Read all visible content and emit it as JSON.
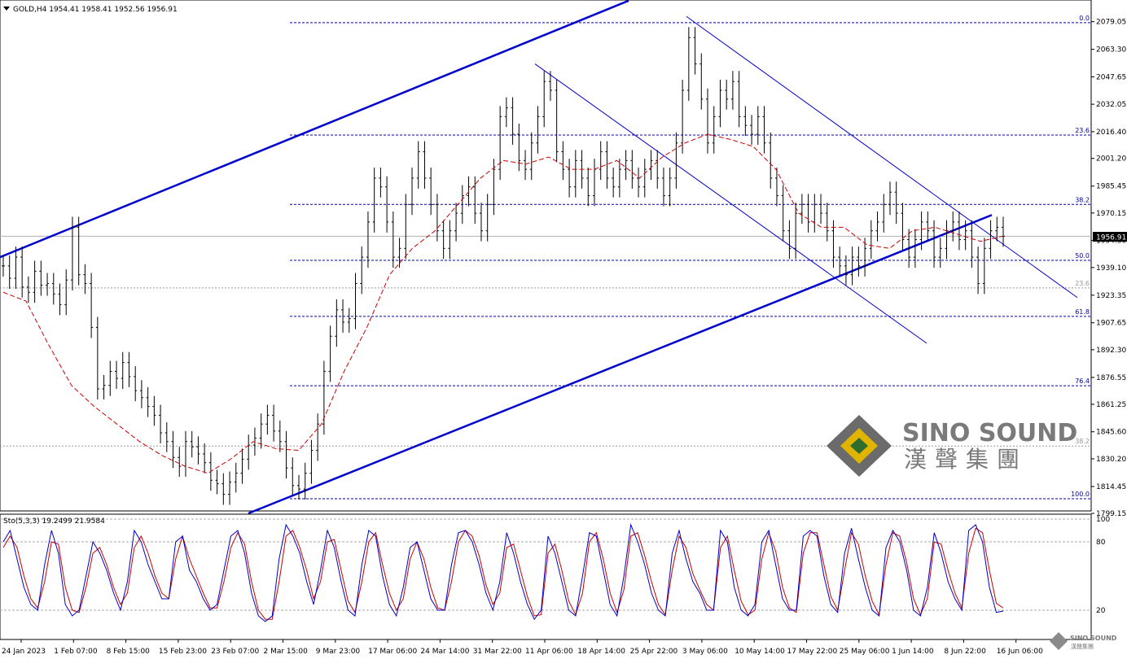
{
  "header": {
    "symbol_text": "GOLD,H4  1954.41 1958.41 1952.56 1956.91"
  },
  "indicator": {
    "label_text": "Sto(5,3,3) 19.2499 21.9584",
    "levels": [
      "100",
      "80",
      "20"
    ]
  },
  "watermark": {
    "brand_en": "SINO SOUND",
    "brand_cn": "漢聲集團",
    "small_en": "SINO SOUND",
    "small_cn": "漢聲集團"
  },
  "colors": {
    "price_bars": "#000000",
    "ma_line": "#cc0000",
    "channel": "#0000cc",
    "fib_line": "#0000aa",
    "stoch_main": "#0000cc",
    "stoch_signal": "#cc0000",
    "price_label_bg": "#000000"
  },
  "chart_data": {
    "type": "line",
    "symbol": "GOLD",
    "timeframe": "H4",
    "ohlc_current": {
      "open": 1954.41,
      "high": 1958.41,
      "low": 1952.56,
      "close": 1956.91
    },
    "current_price_label": "1956.91",
    "y_ticks": [
      "2079.05",
      "2063.30",
      "2047.65",
      "2032.05",
      "2016.40",
      "2001.20",
      "1985.45",
      "1970.15",
      "1954.50",
      "1939.10",
      "1923.35",
      "1907.65",
      "1892.30",
      "1876.55",
      "1861.25",
      "1845.60",
      "1830.20",
      "1814.45",
      "1799.15"
    ],
    "ylim": [
      1799.15,
      2090
    ],
    "x_ticks": [
      "24 Jan 2023",
      "1 Feb 07:00",
      "8 Feb 15:00",
      "15 Feb 23:00",
      "23 Feb 07:00",
      "2 Mar 15:00",
      "9 Mar 23:00",
      "17 Mar 06:00",
      "24 Mar 14:00",
      "31 Mar 22:00",
      "11 Apr 06:00",
      "18 Apr 14:00",
      "25 Apr 22:00",
      "3 May 06:00",
      "10 May 14:00",
      "17 May 22:00",
      "25 May 06:00",
      "1 Jun 14:00",
      "8 Jun 22:00",
      "16 Jun 06:00"
    ],
    "fib_levels": [
      {
        "label": "0.0",
        "price": 2078.5,
        "style": "dashed-blue"
      },
      {
        "label": "23.6",
        "price": 2014.5,
        "style": "dashed-blue"
      },
      {
        "label": "38.2",
        "price": 1975.0,
        "style": "dashed-blue"
      },
      {
        "label": "50.0",
        "price": 1943.2,
        "style": "dashed-blue"
      },
      {
        "label": "23.6",
        "price": 1927.5,
        "style": "dotted-grey"
      },
      {
        "label": "61.8",
        "price": 1911.3,
        "style": "dashed-blue"
      },
      {
        "label": "76.4",
        "price": 1871.8,
        "style": "dashed-blue"
      },
      {
        "label": "38.2",
        "price": 1837.5,
        "style": "dotted-grey"
      },
      {
        "label": "100.0",
        "price": 1807.5,
        "style": "dashed-blue"
      }
    ],
    "series": [
      {
        "kind": "close",
        "values": [
          1940,
          1933,
          1945,
          1928,
          1925,
          1937,
          1929,
          1930,
          1924,
          1918,
          1932,
          1962,
          1935,
          1930,
          1905,
          1870,
          1872,
          1880,
          1876,
          1885,
          1877,
          1869,
          1865,
          1860,
          1855,
          1845,
          1840,
          1831,
          1826,
          1840,
          1837,
          1833,
          1828,
          1818,
          1816,
          1810,
          1817,
          1822,
          1830,
          1838,
          1842,
          1850,
          1855,
          1846,
          1840,
          1825,
          1815,
          1813,
          1822,
          1835,
          1850,
          1880,
          1900,
          1915,
          1908,
          1910,
          1930,
          1945,
          1965,
          1990,
          1985,
          1965,
          1945,
          1950,
          1975,
          1990,
          2005,
          1990,
          1975,
          1960,
          1950,
          1960,
          1970,
          1980,
          1985,
          1970,
          1960,
          1975,
          1995,
          2025,
          2030,
          2015,
          2000,
          1995,
          2010,
          2025,
          2045,
          2040,
          2005,
          1995,
          1985,
          2000,
          1990,
          1980,
          1995,
          2005,
          1990,
          1985,
          1995,
          2000,
          1990,
          1985,
          1995,
          2000,
          1990,
          1980,
          1990,
          2010,
          2040,
          2070,
          2055,
          2035,
          2010,
          2025,
          2040,
          2035,
          2045,
          2025,
          2020,
          2015,
          2025,
          2010,
          1990,
          1980,
          1960,
          1950,
          1970,
          1975,
          1965,
          1975,
          1970,
          1960,
          1945,
          1940,
          1935,
          1945,
          1940,
          1950,
          1960,
          1965,
          1975,
          1982,
          1970,
          1955,
          1945,
          1955,
          1965,
          1960,
          1945,
          1950,
          1960,
          1965,
          1955,
          1960,
          1945,
          1930,
          1950,
          1960,
          1962,
          1956.91
        ]
      },
      {
        "kind": "moving-average",
        "values": [
          1925,
          1920,
          1895,
          1872,
          1860,
          1850,
          1840,
          1832,
          1826,
          1822,
          1830,
          1840,
          1836,
          1835,
          1850,
          1880,
          1905,
          1935,
          1950,
          1960,
          1975,
          1990,
          2000,
          1998,
          2002,
          1995,
          1995,
          2000,
          1990,
          2002,
          2010,
          2015,
          2012,
          2008,
          1995,
          1970,
          1962,
          1962,
          1952,
          1950,
          1960,
          1962,
          1958,
          1954,
          1957
        ]
      },
      {
        "kind": "stochastic-main",
        "values": [
          80,
          90,
          65,
          40,
          25,
          20,
          60,
          90,
          70,
          25,
          15,
          20,
          50,
          80,
          70,
          55,
          35,
          20,
          45,
          90,
          80,
          60,
          45,
          30,
          30,
          80,
          85,
          55,
          45,
          30,
          20,
          25,
          55,
          85,
          90,
          70,
          35,
          15,
          10,
          15,
          65,
          95,
          85,
          70,
          45,
          25,
          55,
          90,
          75,
          45,
          20,
          15,
          60,
          90,
          85,
          50,
          25,
          15,
          40,
          75,
          80,
          55,
          30,
          20,
          20,
          60,
          88,
          90,
          80,
          60,
          35,
          20,
          45,
          88,
          70,
          45,
          25,
          12,
          20,
          85,
          70,
          45,
          20,
          15,
          50,
          88,
          85,
          55,
          25,
          15,
          50,
          95,
          80,
          60,
          35,
          20,
          15,
          70,
          90,
          65,
          45,
          35,
          20,
          20,
          90,
          80,
          40,
          20,
          15,
          25,
          80,
          90,
          60,
          30,
          20,
          20,
          85,
          90,
          85,
          50,
          25,
          18,
          70,
          92,
          65,
          40,
          20,
          15,
          75,
          90,
          80,
          55,
          20,
          15,
          40,
          88,
          70,
          45,
          30,
          20,
          90,
          95,
          80,
          40,
          18,
          19.25
        ]
      },
      {
        "kind": "stochastic-signal",
        "values": [
          75,
          85,
          75,
          50,
          30,
          22,
          45,
          80,
          78,
          40,
          20,
          18,
          40,
          70,
          75,
          60,
          40,
          25,
          35,
          75,
          85,
          70,
          50,
          35,
          30,
          65,
          85,
          65,
          50,
          35,
          22,
          22,
          45,
          75,
          88,
          78,
          45,
          20,
          12,
          12,
          45,
          85,
          90,
          75,
          55,
          30,
          45,
          80,
          82,
          55,
          28,
          18,
          45,
          80,
          88,
          60,
          35,
          20,
          30,
          65,
          80,
          65,
          40,
          22,
          20,
          45,
          80,
          90,
          85,
          68,
          42,
          25,
          35,
          75,
          78,
          55,
          32,
          15,
          16,
          70,
          78,
          55,
          28,
          16,
          35,
          80,
          88,
          65,
          35,
          18,
          38,
          85,
          88,
          68,
          45,
          25,
          16,
          55,
          85,
          75,
          52,
          38,
          25,
          20,
          75,
          85,
          55,
          28,
          16,
          20,
          65,
          88,
          72,
          40,
          22,
          18,
          70,
          88,
          88,
          60,
          32,
          20,
          55,
          88,
          78,
          50,
          28,
          16,
          60,
          88,
          85,
          62,
          30,
          16,
          30,
          80,
          78,
          55,
          35,
          22,
          70,
          92,
          88,
          55,
          26,
          21.96
        ]
      }
    ]
  }
}
